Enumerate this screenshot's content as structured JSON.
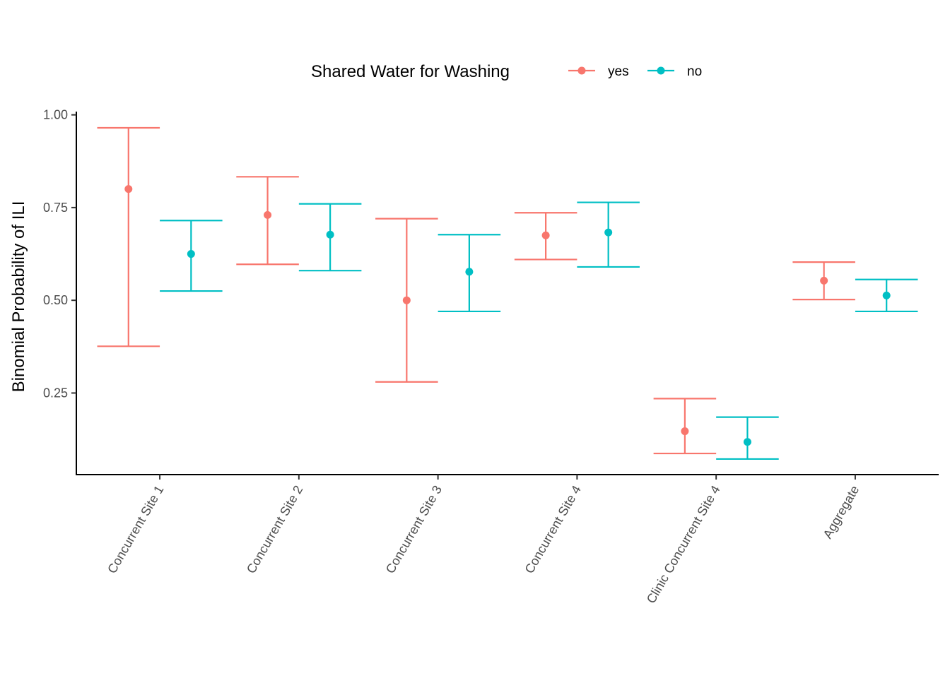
{
  "chart_data": {
    "type": "errorbar",
    "title": "",
    "xlabel": "",
    "ylabel": "Binomial Probability of ILI",
    "ylim": [
      0.03,
      1.005
    ],
    "yticks": [
      0.25,
      0.5,
      0.75,
      1.0
    ],
    "ytick_labels": [
      "0.25",
      "0.50",
      "0.75",
      "1.00"
    ],
    "grid": false,
    "legend": {
      "title": "Shared Water for Washing",
      "position": "top"
    },
    "categories": [
      "Concurrent Site 1",
      "Concurrent Site 2",
      "Concurrent Site 3",
      "Concurrent Site 4",
      "Clinic Concurrent Site 4",
      "Aggregate"
    ],
    "series": [
      {
        "name": "yes",
        "color": "#F8766D",
        "values": [
          0.8,
          0.73,
          0.5,
          0.675,
          0.147,
          0.553
        ],
        "lower": [
          0.376,
          0.597,
          0.28,
          0.61,
          0.087,
          0.502
        ],
        "upper": [
          0.965,
          0.833,
          0.72,
          0.736,
          0.235,
          0.603
        ]
      },
      {
        "name": "no",
        "color": "#00BFC4",
        "values": [
          0.625,
          0.677,
          0.577,
          0.683,
          0.118,
          0.513
        ],
        "lower": [
          0.525,
          0.58,
          0.47,
          0.59,
          0.072,
          0.47
        ],
        "upper": [
          0.715,
          0.76,
          0.677,
          0.764,
          0.185,
          0.556
        ]
      }
    ]
  }
}
